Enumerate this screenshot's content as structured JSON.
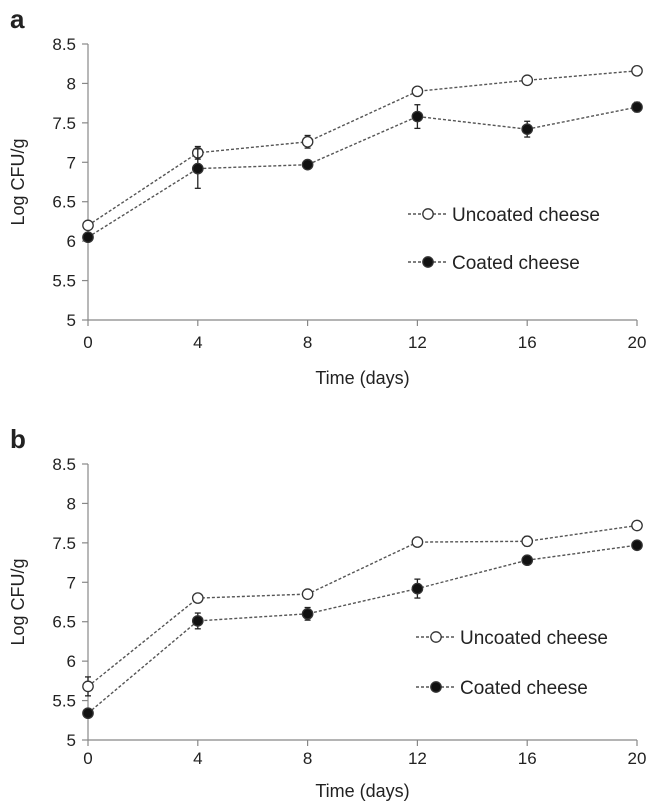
{
  "chart_data": [
    {
      "type": "line",
      "panel_label": "a",
      "xlabel": "Time (days)",
      "ylabel": "Log CFU/g",
      "x": [
        0,
        4,
        8,
        12,
        16,
        20
      ],
      "xticks": [
        "0",
        "4",
        "8",
        "12",
        "16",
        "20"
      ],
      "yticks": [
        "5",
        "5.5",
        "6",
        "6.5",
        "7",
        "7.5",
        "8",
        "8.5"
      ],
      "ylim": [
        5,
        8.5
      ],
      "xlim": [
        0,
        20
      ],
      "grid": false,
      "legend": "right-middle",
      "series": [
        {
          "name": "Uncoated cheese",
          "marker": "open-circle",
          "values": [
            6.2,
            7.12,
            7.26,
            7.9,
            8.04,
            8.16
          ],
          "errors": [
            0.04,
            0.08,
            0.08,
            0.03,
            0.03,
            0.03
          ]
        },
        {
          "name": "Coated cheese",
          "marker": "filled-circle",
          "values": [
            6.05,
            6.92,
            6.97,
            7.58,
            7.42,
            7.7
          ],
          "errors": [
            0.03,
            0.25,
            0.03,
            0.15,
            0.1,
            0.06
          ]
        }
      ]
    },
    {
      "type": "line",
      "panel_label": "b",
      "xlabel": "Time (days)",
      "ylabel": "Log CFU/g",
      "x": [
        0,
        4,
        8,
        12,
        16,
        20
      ],
      "xticks": [
        "0",
        "4",
        "8",
        "12",
        "16",
        "20"
      ],
      "yticks": [
        "5",
        "5.5",
        "6",
        "6.5",
        "7",
        "7.5",
        "8",
        "8.5"
      ],
      "ylim": [
        5,
        8.5
      ],
      "xlim": [
        0,
        20
      ],
      "grid": false,
      "legend": "right-middle",
      "series": [
        {
          "name": "Uncoated cheese",
          "marker": "open-circle",
          "values": [
            5.68,
            6.8,
            6.85,
            7.51,
            7.52,
            7.72
          ],
          "errors": [
            0.12,
            0.04,
            0.03,
            0.03,
            0.06,
            0.03
          ]
        },
        {
          "name": "Coated cheese",
          "marker": "filled-circle",
          "values": [
            5.34,
            6.51,
            6.6,
            6.92,
            7.28,
            7.47
          ],
          "errors": [
            0.04,
            0.1,
            0.08,
            0.12,
            0.03,
            0.03
          ]
        }
      ]
    }
  ],
  "colors": {
    "line": "#555555",
    "marker_stroke": "#333333",
    "filled_marker": "#111111",
    "open_marker": "#ffffff",
    "axis": "#888888"
  }
}
